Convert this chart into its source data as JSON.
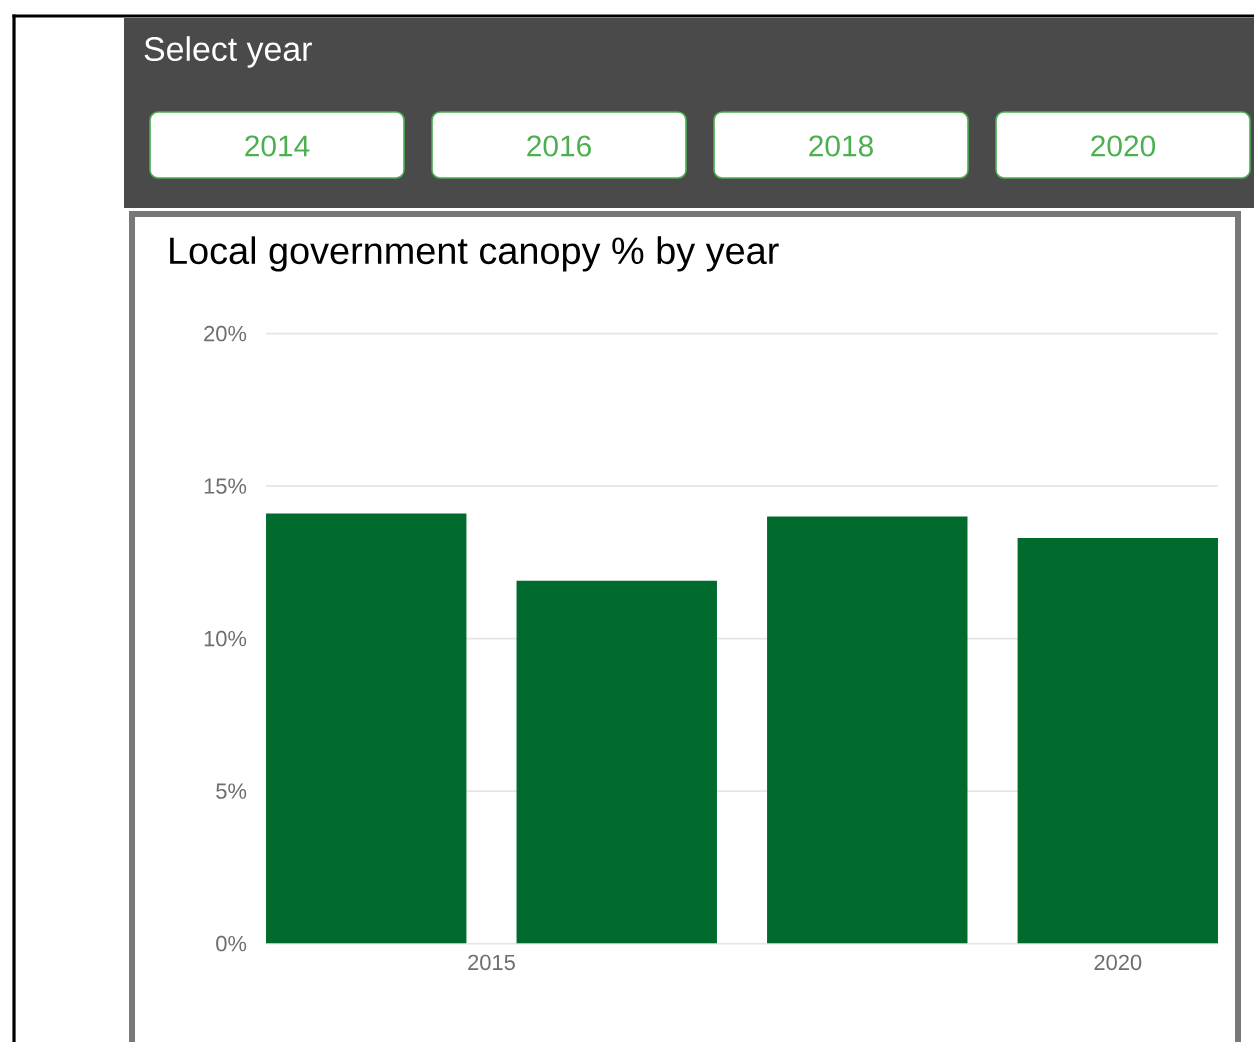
{
  "chart_data": {
    "type": "bar",
    "title": "Local government canopy % by year",
    "annotations": [
      "Select year",
      "2014",
      "2016",
      "2018",
      "2020"
    ],
    "x": [
      2014,
      2016,
      2018,
      2020
    ],
    "values": [
      14.1,
      11.9,
      14.0,
      13.3
    ],
    "color": "#006b2d",
    "xlim": [
      2013.2,
      2020.8
    ],
    "xticks": [
      2015,
      2020
    ],
    "ylim": [
      0,
      20
    ],
    "yticks": [
      {
        "value": 0,
        "label": "0%"
      },
      {
        "value": 5,
        "label": "5%"
      },
      {
        "value": 10,
        "label": "10%"
      },
      {
        "value": 15,
        "label": "15%"
      },
      {
        "value": 20,
        "label": "20%"
      }
    ],
    "grid": "y"
  }
}
